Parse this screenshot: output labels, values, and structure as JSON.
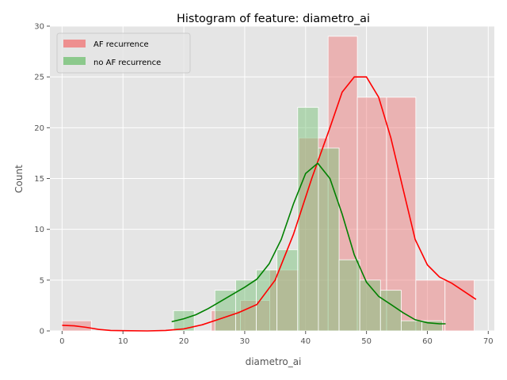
{
  "chart_data": {
    "type": "histogram",
    "title": "Histogram of feature: diametro_ai",
    "xlabel": "diametro_ai",
    "ylabel": "Count",
    "xlim": [
      -2,
      71
    ],
    "ylim": [
      0,
      30
    ],
    "xticks": [
      0,
      10,
      20,
      30,
      40,
      50,
      60,
      70
    ],
    "yticks": [
      0,
      5,
      10,
      15,
      20,
      25,
      30
    ],
    "grid": true,
    "legend": {
      "position": "top-left"
    },
    "series": [
      {
        "name": "AF recurrence",
        "color": "#f08080",
        "kde_color": "#ff0000",
        "bins": [
          {
            "x0": 0.0,
            "x1": 4.8,
            "count": 1
          },
          {
            "x0": 24.5,
            "x1": 29.3,
            "count": 2
          },
          {
            "x0": 29.3,
            "x1": 34.1,
            "count": 3
          },
          {
            "x0": 34.1,
            "x1": 38.9,
            "count": 6
          },
          {
            "x0": 38.9,
            "x1": 43.7,
            "count": 19
          },
          {
            "x0": 43.7,
            "x1": 48.5,
            "count": 29
          },
          {
            "x0": 48.5,
            "x1": 53.3,
            "count": 23
          },
          {
            "x0": 53.3,
            "x1": 58.1,
            "count": 23
          },
          {
            "x0": 58.1,
            "x1": 62.9,
            "count": 5
          },
          {
            "x0": 62.9,
            "x1": 67.7,
            "count": 5
          }
        ],
        "kde": [
          [
            0,
            0.55
          ],
          [
            2,
            0.5
          ],
          [
            4,
            0.35
          ],
          [
            6,
            0.15
          ],
          [
            8,
            0.05
          ],
          [
            10,
            0.02
          ],
          [
            14,
            0.0
          ],
          [
            17,
            0.05
          ],
          [
            20,
            0.2
          ],
          [
            23,
            0.6
          ],
          [
            26,
            1.2
          ],
          [
            29,
            1.8
          ],
          [
            32,
            2.6
          ],
          [
            35,
            5.0
          ],
          [
            38,
            9.5
          ],
          [
            41,
            15.0
          ],
          [
            44,
            20.0
          ],
          [
            46,
            23.5
          ],
          [
            48,
            25.0
          ],
          [
            50,
            25.0
          ],
          [
            52,
            23.0
          ],
          [
            54,
            19.0
          ],
          [
            56,
            14.0
          ],
          [
            58,
            9.0
          ],
          [
            60,
            6.5
          ],
          [
            62,
            5.3
          ],
          [
            64,
            4.7
          ],
          [
            66,
            3.9
          ],
          [
            68,
            3.1
          ]
        ]
      },
      {
        "name": "no AF recurrence",
        "color": "#7cc47c",
        "kde_color": "#008000",
        "bins": [
          {
            "x0": 18.3,
            "x1": 21.7,
            "count": 2
          },
          {
            "x0": 25.1,
            "x1": 28.5,
            "count": 4
          },
          {
            "x0": 28.5,
            "x1": 31.9,
            "count": 5
          },
          {
            "x0": 31.9,
            "x1": 35.3,
            "count": 6
          },
          {
            "x0": 35.3,
            "x1": 38.7,
            "count": 8
          },
          {
            "x0": 38.7,
            "x1": 42.1,
            "count": 22
          },
          {
            "x0": 42.1,
            "x1": 45.5,
            "count": 18
          },
          {
            "x0": 45.5,
            "x1": 48.9,
            "count": 7
          },
          {
            "x0": 48.9,
            "x1": 52.3,
            "count": 5
          },
          {
            "x0": 52.3,
            "x1": 55.7,
            "count": 4
          },
          {
            "x0": 55.7,
            "x1": 59.1,
            "count": 1
          },
          {
            "x0": 59.1,
            "x1": 62.5,
            "count": 1
          }
        ],
        "kde": [
          [
            18,
            0.9
          ],
          [
            20,
            1.2
          ],
          [
            22,
            1.6
          ],
          [
            24,
            2.2
          ],
          [
            26,
            2.9
          ],
          [
            28,
            3.6
          ],
          [
            30,
            4.3
          ],
          [
            32,
            5.1
          ],
          [
            34,
            6.6
          ],
          [
            36,
            9.0
          ],
          [
            38,
            12.5
          ],
          [
            40,
            15.5
          ],
          [
            42,
            16.5
          ],
          [
            44,
            15.0
          ],
          [
            46,
            11.5
          ],
          [
            48,
            7.5
          ],
          [
            50,
            4.8
          ],
          [
            52,
            3.4
          ],
          [
            54,
            2.6
          ],
          [
            56,
            1.8
          ],
          [
            58,
            1.1
          ],
          [
            60,
            0.8
          ],
          [
            62,
            0.7
          ],
          [
            63,
            0.7
          ]
        ]
      }
    ]
  }
}
